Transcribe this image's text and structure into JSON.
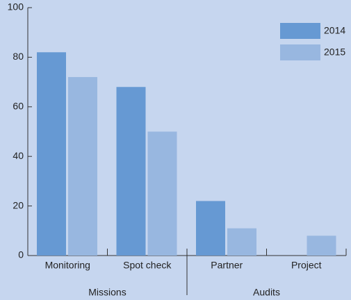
{
  "chart_data": {
    "type": "bar",
    "categories": [
      "Monitoring",
      "Spot check",
      "Partner",
      "Project"
    ],
    "groups": [
      {
        "name": "Missions",
        "count": 2
      },
      {
        "name": "Audits",
        "count": 2
      }
    ],
    "series": [
      {
        "name": "2014",
        "color": "#6699d3",
        "values": [
          82,
          68,
          22,
          0
        ]
      },
      {
        "name": "2015",
        "color": "#98b7e0",
        "values": [
          72,
          50,
          11,
          8
        ]
      }
    ],
    "ylim": [
      0,
      100
    ],
    "yticks": [
      0,
      20,
      40,
      60,
      80,
      100
    ],
    "legend": "top-right"
  }
}
